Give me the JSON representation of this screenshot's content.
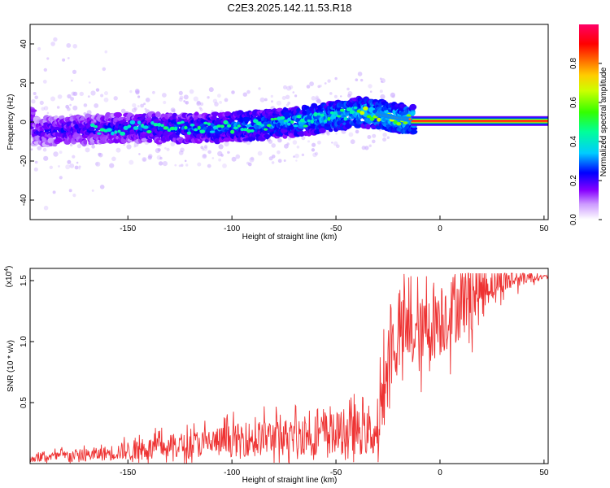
{
  "title": "C2E3.2025.142.11.53.R18",
  "chart_data": [
    {
      "type": "heatmap",
      "xlabel": "Height of straight line (km)",
      "ylabel": "Frequency (Hz)",
      "xlim": [
        -197,
        52
      ],
      "ylim": [
        -50,
        50
      ],
      "x_ticks": [
        -150,
        -100,
        -50,
        0,
        50
      ],
      "x_tick_labels": [
        "-150",
        "-100",
        "-50",
        "0",
        "50"
      ],
      "y_ticks": [
        40,
        20,
        0,
        -20,
        -40
      ],
      "y_tick_labels": [
        "40",
        "20",
        "0",
        "-20",
        "-40"
      ],
      "colorbar": {
        "label": "Normalized spectral amplitude",
        "range": [
          0,
          1
        ],
        "ticks": [
          0.0,
          0.2,
          0.4,
          0.6,
          0.8
        ],
        "tick_labels": [
          "0.0",
          "0.2",
          "0.4",
          "0.6",
          "0.8"
        ],
        "colors": [
          "#ffffff",
          "#8800ff",
          "#0000ff",
          "#00ccff",
          "#00ff66",
          "#66ff00",
          "#ffff00",
          "#ff8800",
          "#ff0000",
          "#ff0088"
        ]
      },
      "ridge": {
        "x": [
          -195,
          -170,
          -150,
          -130,
          -110,
          -90,
          -70,
          -50,
          -40,
          -30,
          -20,
          -10,
          0,
          10,
          20,
          30,
          40,
          52
        ],
        "freq": [
          -5,
          -4,
          -3,
          -3,
          -3,
          -2,
          0,
          3,
          5,
          4,
          2,
          1,
          0,
          0,
          0.5,
          0.5,
          0.5,
          0.5
        ]
      },
      "grid": false
    },
    {
      "type": "line",
      "xlabel": "Height of straight line (km)",
      "ylabel": "SNR (10 * v/v)",
      "y_scale_label": "(x10",
      "y_scale_exponent": "4",
      "y_scale_suffix": ")",
      "xlim": [
        -197,
        52
      ],
      "ylim": [
        0,
        1.6
      ],
      "x_ticks": [
        -150,
        -100,
        -50,
        0,
        50
      ],
      "x_tick_labels": [
        "-150",
        "-100",
        "-50",
        "0",
        "50"
      ],
      "y_ticks": [
        0.5,
        1.0,
        1.5
      ],
      "y_tick_labels": [
        "0.5",
        "1.0",
        "1.5"
      ],
      "series_color": "#ee3333",
      "series": [
        {
          "x": [
            -197,
            -180,
            -165,
            -150,
            -130,
            -110,
            -90,
            -70,
            -50,
            -40,
            -30,
            -27,
            -25,
            -20,
            -15,
            -10,
            -5,
            0,
            5,
            10,
            20,
            30,
            40,
            52
          ],
          "values": [
            0.04,
            0.06,
            0.07,
            0.1,
            0.13,
            0.16,
            0.19,
            0.21,
            0.23,
            0.24,
            0.22,
            0.55,
            0.85,
            1.0,
            1.05,
            1.0,
            1.1,
            1.15,
            1.2,
            1.3,
            1.42,
            1.48,
            1.52,
            1.53
          ]
        }
      ],
      "grid": false
    }
  ]
}
